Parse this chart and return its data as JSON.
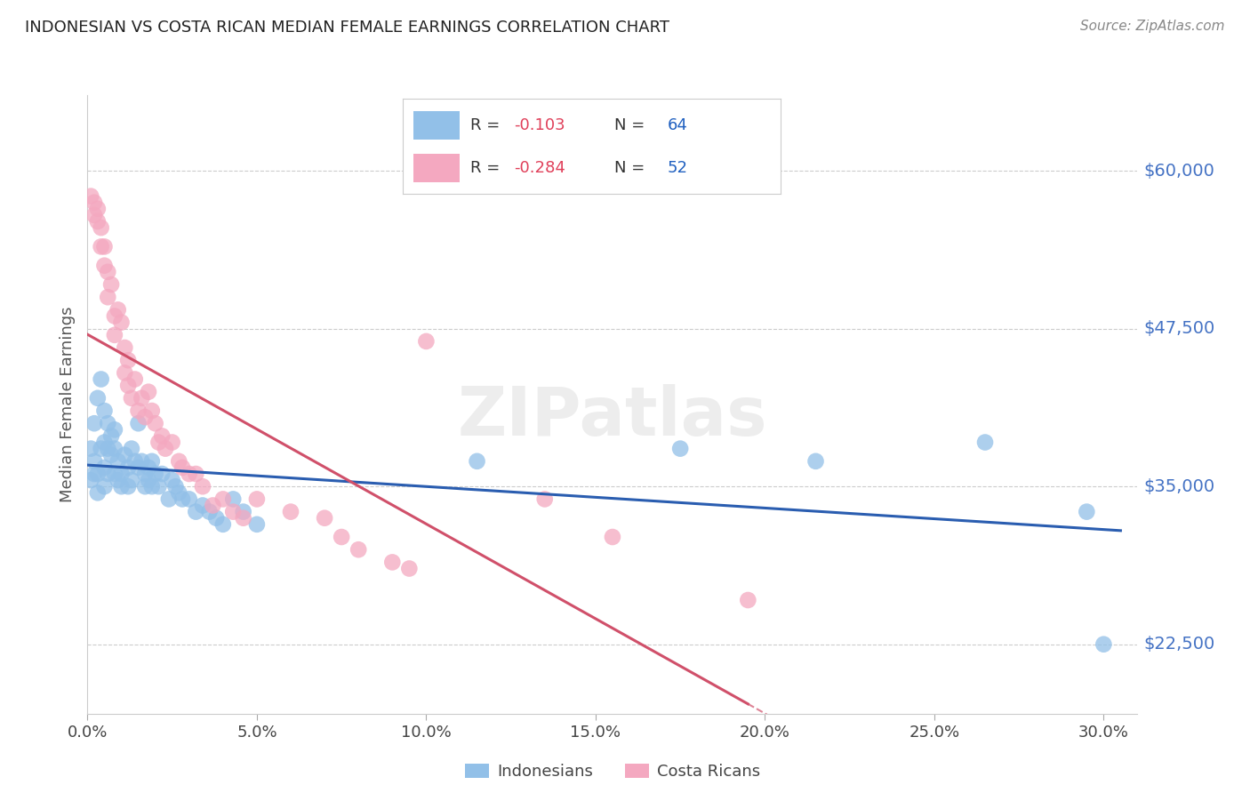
{
  "title": "INDONESIAN VS COSTA RICAN MEDIAN FEMALE EARNINGS CORRELATION CHART",
  "source": "Source: ZipAtlas.com",
  "ylabel": "Median Female Earnings",
  "y_tick_labels": [
    "$22,500",
    "$35,000",
    "$47,500",
    "$60,000"
  ],
  "y_tick_values": [
    22500,
    35000,
    47500,
    60000
  ],
  "x_tick_labels": [
    "0.0%",
    "5.0%",
    "10.0%",
    "15.0%",
    "20.0%",
    "25.0%",
    "30.0%"
  ],
  "x_tick_values": [
    0.0,
    0.05,
    0.1,
    0.15,
    0.2,
    0.25,
    0.3
  ],
  "xlim": [
    0.0,
    0.31
  ],
  "ylim": [
    17000,
    66000
  ],
  "blue_R": -0.103,
  "blue_N": 64,
  "pink_R": -0.284,
  "pink_N": 52,
  "blue_color": "#92C0E8",
  "pink_color": "#F4A8C0",
  "blue_line_color": "#2A5DB0",
  "pink_line_color": "#D0506A",
  "title_color": "#222222",
  "source_color": "#888888",
  "label_color": "#4472C4",
  "legend_label_blue": "Indonesians",
  "legend_label_pink": "Costa Ricans",
  "watermark": "ZIPatlas",
  "background_color": "#FFFFFF",
  "blue_dots_x": [
    0.001,
    0.001,
    0.002,
    0.002,
    0.002,
    0.003,
    0.003,
    0.003,
    0.004,
    0.004,
    0.005,
    0.005,
    0.005,
    0.005,
    0.006,
    0.006,
    0.006,
    0.007,
    0.007,
    0.008,
    0.008,
    0.008,
    0.009,
    0.009,
    0.01,
    0.01,
    0.011,
    0.012,
    0.012,
    0.013,
    0.013,
    0.014,
    0.015,
    0.015,
    0.016,
    0.017,
    0.017,
    0.018,
    0.018,
    0.019,
    0.019,
    0.02,
    0.021,
    0.022,
    0.024,
    0.025,
    0.026,
    0.027,
    0.028,
    0.03,
    0.032,
    0.034,
    0.036,
    0.038,
    0.04,
    0.043,
    0.046,
    0.05,
    0.115,
    0.175,
    0.215,
    0.265,
    0.295,
    0.3
  ],
  "blue_dots_y": [
    38000,
    35500,
    40000,
    37000,
    36000,
    42000,
    36000,
    34500,
    43500,
    38000,
    41000,
    38500,
    36500,
    35000,
    40000,
    38000,
    36000,
    39000,
    37500,
    39500,
    38000,
    36000,
    37000,
    35500,
    36000,
    35000,
    37500,
    36500,
    35000,
    38000,
    35500,
    37000,
    40000,
    36500,
    37000,
    36000,
    35000,
    36500,
    35500,
    37000,
    35000,
    36000,
    35000,
    36000,
    34000,
    35500,
    35000,
    34500,
    34000,
    34000,
    33000,
    33500,
    33000,
    32500,
    32000,
    34000,
    33000,
    32000,
    37000,
    38000,
    37000,
    38500,
    33000,
    22500
  ],
  "pink_dots_x": [
    0.001,
    0.002,
    0.002,
    0.003,
    0.003,
    0.004,
    0.004,
    0.005,
    0.005,
    0.006,
    0.006,
    0.007,
    0.008,
    0.008,
    0.009,
    0.01,
    0.011,
    0.011,
    0.012,
    0.012,
    0.013,
    0.014,
    0.015,
    0.016,
    0.017,
    0.018,
    0.019,
    0.02,
    0.021,
    0.022,
    0.023,
    0.025,
    0.027,
    0.028,
    0.03,
    0.032,
    0.034,
    0.037,
    0.04,
    0.043,
    0.046,
    0.05,
    0.06,
    0.07,
    0.075,
    0.08,
    0.09,
    0.095,
    0.1,
    0.135,
    0.155,
    0.195
  ],
  "pink_dots_y": [
    58000,
    57500,
    56500,
    57000,
    56000,
    55500,
    54000,
    54000,
    52500,
    52000,
    50000,
    51000,
    48500,
    47000,
    49000,
    48000,
    46000,
    44000,
    43000,
    45000,
    42000,
    43500,
    41000,
    42000,
    40500,
    42500,
    41000,
    40000,
    38500,
    39000,
    38000,
    38500,
    37000,
    36500,
    36000,
    36000,
    35000,
    33500,
    34000,
    33000,
    32500,
    34000,
    33000,
    32500,
    31000,
    30000,
    29000,
    28500,
    46500,
    34000,
    31000,
    26000
  ]
}
